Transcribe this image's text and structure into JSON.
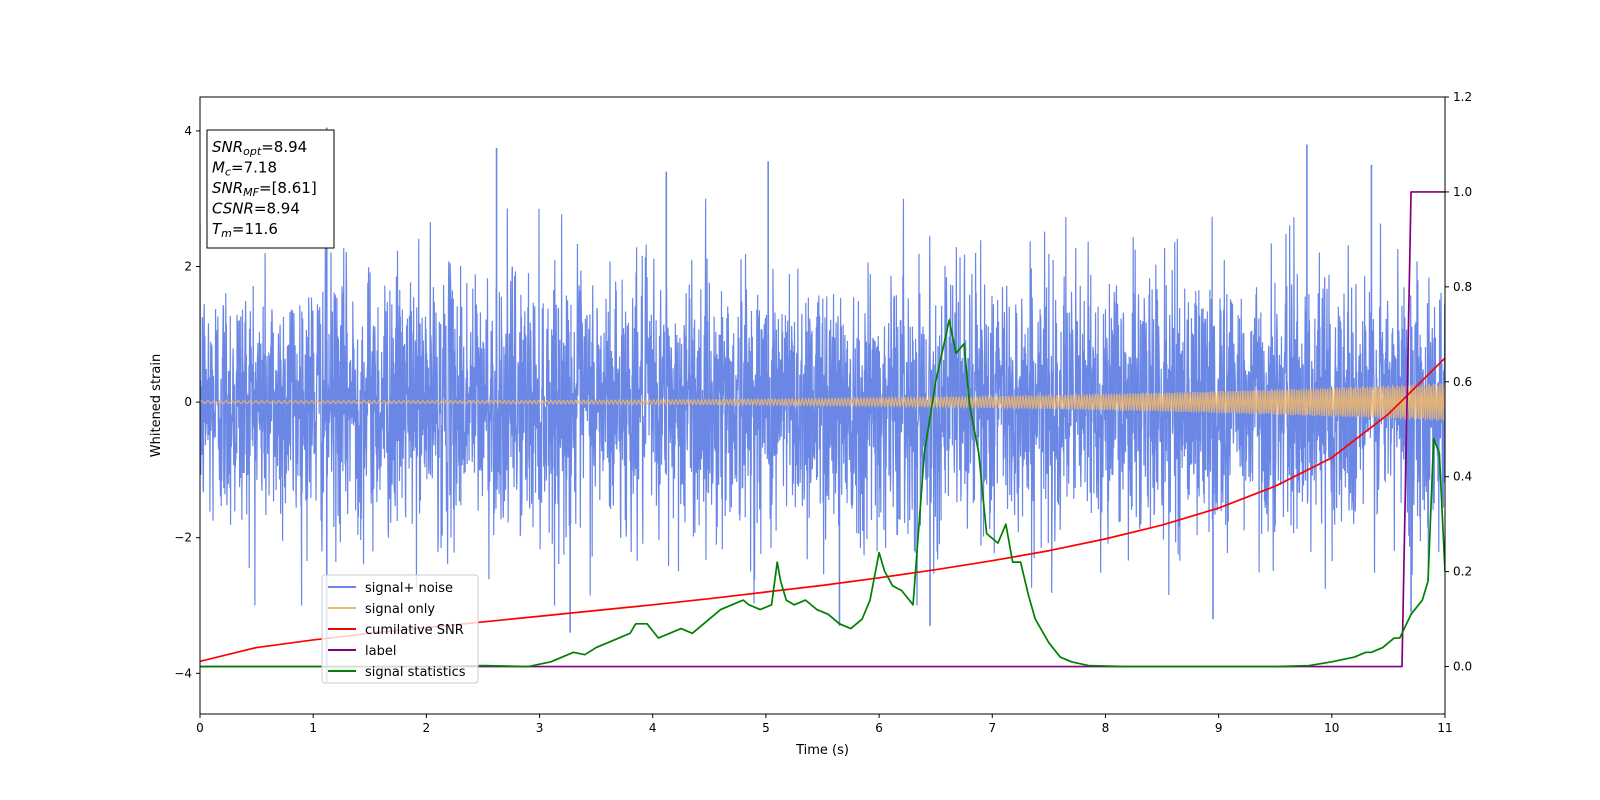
{
  "chart_data": {
    "type": "line",
    "xlabel": "Time (s)",
    "ylabel": "Whitened strain",
    "xlim": [
      0,
      11
    ],
    "ylim": [
      -4.6,
      4.5
    ],
    "y2lim": [
      -0.1,
      1.2
    ],
    "x_ticks": [
      0,
      1,
      2,
      3,
      4,
      5,
      6,
      7,
      8,
      9,
      10,
      11
    ],
    "x_tick_labels": [
      "0",
      "1",
      "2",
      "3",
      "4",
      "5",
      "6",
      "7",
      "8",
      "9",
      "10",
      "11"
    ],
    "y_ticks": [
      -4,
      -2,
      0,
      2,
      4
    ],
    "y_tick_labels": [
      "−4",
      "−2",
      "0",
      "2",
      "4"
    ],
    "y2_ticks": [
      0.0,
      0.2,
      0.4,
      0.6,
      0.8,
      1.0,
      1.2
    ],
    "y2_tick_labels": [
      "0.0",
      "0.2",
      "0.4",
      "0.6",
      "0.8",
      "1.0",
      "1.2"
    ],
    "grid": false,
    "legend_position": "bottom-left",
    "annotation_box": {
      "position": "top-left",
      "lines": [
        {
          "sym": "SNR",
          "sub": "opt",
          "val": "=8.94"
        },
        {
          "sym": "M",
          "sub": "c",
          "val": "=7.18"
        },
        {
          "sym": "SNR",
          "sub": "MF",
          "val": "=[8.61]"
        },
        {
          "sym": "CSNR",
          "sub": "",
          "val": "=8.94"
        },
        {
          "sym": "T",
          "sub": "m",
          "val": "=11.6"
        }
      ]
    },
    "series": [
      {
        "name": "signal+ noise",
        "color": "#6a87e6",
        "axis": "left",
        "kind": "noise",
        "noise_sigma": 0.95,
        "noise_spikes": [
          [
            1.12,
            4.05
          ],
          [
            1.12,
            -4.15
          ],
          [
            2.62,
            3.75
          ],
          [
            3.27,
            -3.4
          ],
          [
            4.12,
            3.4
          ],
          [
            5.02,
            3.55
          ],
          [
            5.65,
            -3.3
          ],
          [
            6.45,
            -3.3
          ],
          [
            8.95,
            -3.2
          ],
          [
            9.78,
            3.8
          ],
          [
            10.35,
            3.5
          ],
          [
            10.7,
            -3.1
          ]
        ]
      },
      {
        "name": "signal only",
        "color": "#f2b869",
        "axis": "left",
        "kind": "chirp",
        "amp_start": 0.02,
        "amp_end": 0.28
      },
      {
        "name": "cumilative SNR",
        "color": "#ff0000",
        "axis": "right",
        "x": [
          0,
          0.5,
          1,
          1.5,
          2,
          2.5,
          3,
          3.5,
          4,
          4.5,
          5,
          5.5,
          6,
          6.5,
          7,
          7.5,
          8,
          8.5,
          9,
          9.5,
          10,
          10.5,
          11
        ],
        "y": [
          0.011,
          0.04,
          0.056,
          0.07,
          0.082,
          0.094,
          0.106,
          0.118,
          0.13,
          0.143,
          0.157,
          0.171,
          0.187,
          0.204,
          0.223,
          0.244,
          0.269,
          0.298,
          0.334,
          0.38,
          0.44,
          0.532,
          0.65
        ]
      },
      {
        "name": "label",
        "color": "#800080",
        "axis": "right",
        "x": [
          0,
          10.62,
          10.7,
          11
        ],
        "y": [
          0,
          0,
          1,
          1
        ]
      },
      {
        "name": "signal statistics",
        "color": "#008000",
        "axis": "right",
        "x": [
          0,
          1,
          2,
          2.5,
          2.9,
          3.1,
          3.2,
          3.3,
          3.4,
          3.5,
          3.6,
          3.7,
          3.8,
          3.85,
          3.95,
          4.05,
          4.15,
          4.25,
          4.35,
          4.45,
          4.5,
          4.6,
          4.7,
          4.8,
          4.85,
          4.95,
          5.05,
          5.1,
          5.13,
          5.18,
          5.25,
          5.35,
          5.45,
          5.55,
          5.65,
          5.75,
          5.85,
          5.92,
          6.0,
          6.05,
          6.12,
          6.2,
          6.3,
          6.4,
          6.5,
          6.62,
          6.68,
          6.75,
          6.8,
          6.88,
          6.95,
          7.05,
          7.12,
          7.18,
          7.25,
          7.32,
          7.38,
          7.5,
          7.6,
          7.7,
          7.85,
          8.2,
          8.8,
          9.2,
          9.5,
          9.8,
          10.0,
          10.2,
          10.3,
          10.35,
          10.45,
          10.5,
          10.55,
          10.6,
          10.7,
          10.8,
          10.85,
          10.9,
          10.95,
          11.0
        ],
        "y": [
          0,
          0,
          0,
          0.002,
          0,
          0.01,
          0.02,
          0.03,
          0.025,
          0.04,
          0.05,
          0.06,
          0.07,
          0.09,
          0.09,
          0.06,
          0.07,
          0.08,
          0.07,
          0.09,
          0.1,
          0.12,
          0.13,
          0.14,
          0.13,
          0.12,
          0.13,
          0.22,
          0.18,
          0.14,
          0.13,
          0.14,
          0.12,
          0.11,
          0.09,
          0.08,
          0.1,
          0.14,
          0.24,
          0.2,
          0.17,
          0.16,
          0.13,
          0.45,
          0.6,
          0.73,
          0.66,
          0.68,
          0.55,
          0.45,
          0.28,
          0.26,
          0.3,
          0.22,
          0.22,
          0.15,
          0.1,
          0.05,
          0.02,
          0.01,
          0.002,
          0,
          0,
          0,
          0,
          0.002,
          0.01,
          0.02,
          0.03,
          0.03,
          0.04,
          0.05,
          0.06,
          0.06,
          0.11,
          0.14,
          0.18,
          0.48,
          0.45,
          0.2
        ]
      }
    ]
  }
}
